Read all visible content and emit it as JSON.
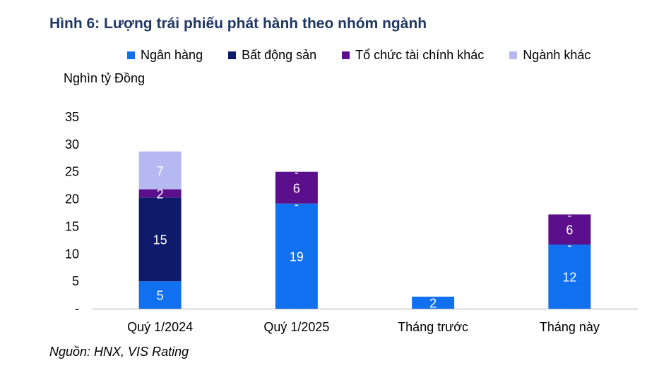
{
  "title": "Hình 6: Lượng trái phiếu phát hành theo nhóm ngành",
  "unit_label": "Nghìn tỷ Đồng",
  "source": "Nguồn: HNX, VIS Rating",
  "legend": [
    {
      "label": "Ngân hàng",
      "color": "#1070f0"
    },
    {
      "label": "Bất động sản",
      "color": "#101a6a"
    },
    {
      "label": "Tổ chức tài chính khác",
      "color": "#5c0f8c"
    },
    {
      "label": "Ngành khác",
      "color": "#b6b8f2"
    }
  ],
  "chart_data": {
    "type": "bar",
    "stacked": true,
    "categories": [
      "Quý 1/2024",
      "Quý 1/2025",
      "Tháng trước",
      "Tháng này"
    ],
    "series": [
      {
        "name": "Ngân hàng",
        "color": "#1070f0",
        "values": [
          5,
          19.2,
          2.2,
          11.7
        ],
        "labels": [
          "5",
          "19",
          "2",
          "12"
        ]
      },
      {
        "name": "Bất động sản",
        "color": "#101a6a",
        "values": [
          15.3,
          0,
          0,
          0
        ],
        "labels": [
          "15",
          "-",
          "",
          "-"
        ]
      },
      {
        "name": "Tổ chức tài chính khác",
        "color": "#5c0f8c",
        "values": [
          1.5,
          5.8,
          0,
          5.5
        ],
        "labels": [
          "2",
          "6",
          "",
          "6"
        ]
      },
      {
        "name": "Ngành khác",
        "color": "#b6b8f2",
        "values": [
          6.9,
          0,
          0,
          0
        ],
        "labels": [
          "7",
          "-",
          "",
          "-"
        ]
      }
    ],
    "ylim": [
      0,
      35
    ],
    "yticks": [
      "-",
      "5",
      "10",
      "15",
      "20",
      "25",
      "30",
      "35"
    ],
    "ylabel": "Nghìn tỷ Đồng",
    "legend_position": "top",
    "grid": false
  }
}
